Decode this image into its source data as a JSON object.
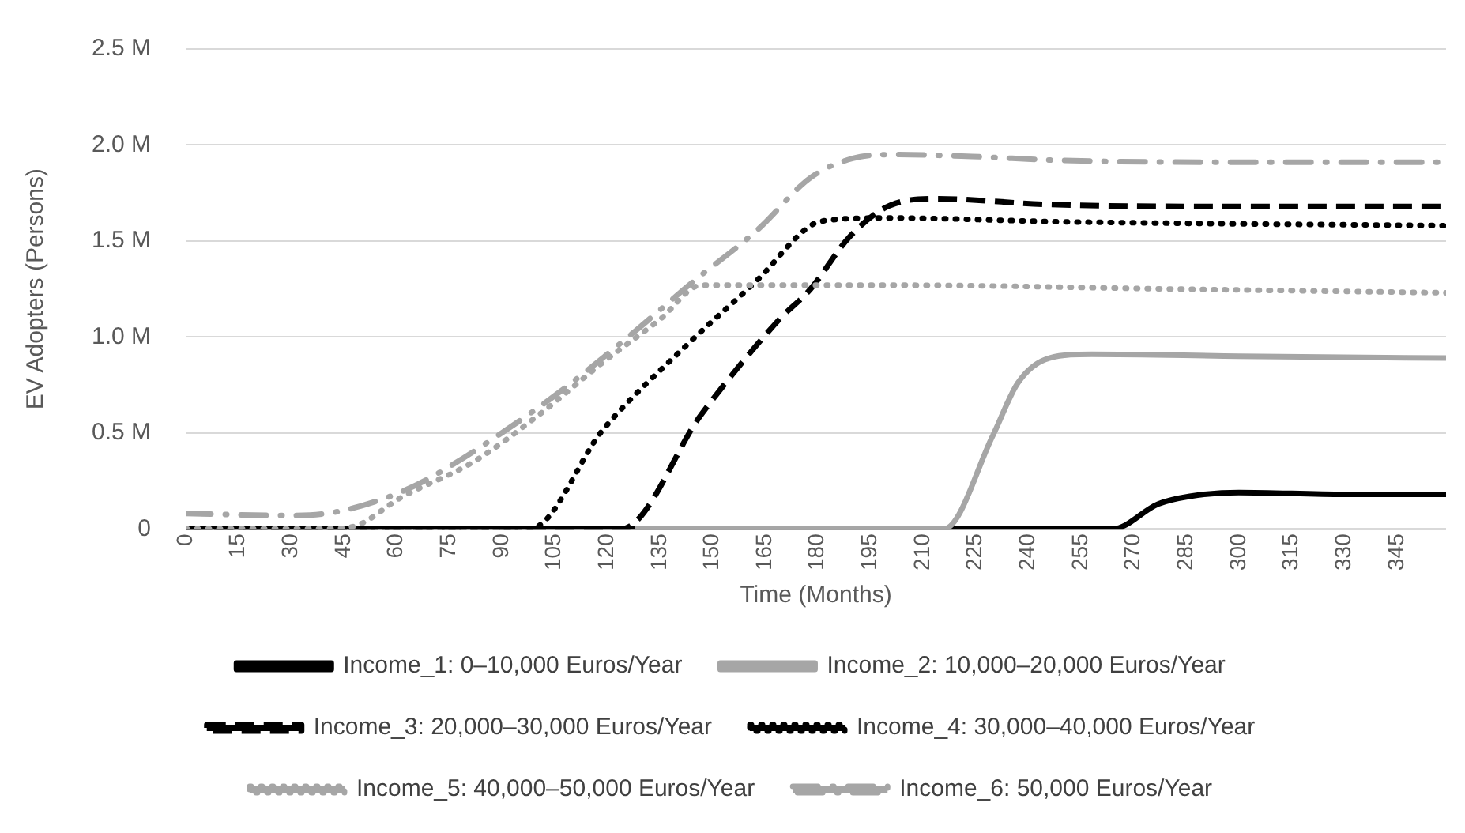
{
  "chart_data": {
    "type": "line",
    "xlabel": "Time (Months)",
    "ylabel": "EV Adopters (Persons)",
    "xlim": [
      0,
      359
    ],
    "xticks": [
      0,
      15,
      30,
      45,
      60,
      75,
      90,
      105,
      120,
      135,
      150,
      165,
      180,
      195,
      210,
      225,
      240,
      255,
      270,
      285,
      300,
      315,
      330,
      345
    ],
    "ylim": [
      0,
      2.5
    ],
    "yticks": [
      0,
      {
        "value": 0.5,
        "label": "0.5 M"
      },
      {
        "value": 1,
        "label": "1.0 M"
      },
      {
        "value": 1.5,
        "label": "1.5 M"
      },
      {
        "value": 2,
        "label": "2.0 M"
      },
      {
        "value": 2.5,
        "label": "2.5 M"
      }
    ],
    "grid": "y",
    "legend": "bottom",
    "marker": "none",
    "series": [
      {
        "name": "Income_1: 0–10,000 Euros/Year",
        "color": "#000000",
        "line_style": "solid",
        "x": [
          0,
          264,
          277,
          286,
          300,
          330,
          359
        ],
        "values": [
          0,
          0,
          0.13,
          0.17,
          0.19,
          0.18,
          0.18
        ]
      },
      {
        "name": "Income_2: 10,000–20,000 Euros/Year",
        "color": "#a6a6a6",
        "line_style": "solid",
        "x": [
          128,
          216,
          230,
          237,
          246,
          258,
          300,
          359
        ],
        "values": [
          0,
          0,
          0.49,
          0.76,
          0.89,
          0.91,
          0.9,
          0.89
        ]
      },
      {
        "name": "Income_3: 20,000–30,000 Euros/Year",
        "color": "#000000",
        "line_style": "dashed",
        "x": [
          0,
          124,
          147,
          169,
          178,
          189,
          200,
          214,
          246,
          300,
          359
        ],
        "values": [
          0,
          0,
          0.6,
          1.09,
          1.25,
          1.52,
          1.68,
          1.72,
          1.69,
          1.68,
          1.68
        ]
      },
      {
        "name": "Income_4: 30,000–40,000 Euros/Year",
        "color": "#000000",
        "line_style": "dotted",
        "x": [
          0,
          98,
          119,
          144,
          163,
          178,
          184,
          200,
          250,
          359
        ],
        "values": [
          0,
          0,
          0.52,
          0.98,
          1.3,
          1.58,
          1.61,
          1.62,
          1.6,
          1.58
        ]
      },
      {
        "name": "Income_5: 40,000–50,000 Euros/Year",
        "color": "#a6a6a6",
        "line_style": "dotted",
        "x": [
          0,
          40,
          49,
          61,
          82,
          101,
          119,
          135,
          147,
          200,
          280,
          359
        ],
        "values": [
          0,
          0,
          0.02,
          0.16,
          0.35,
          0.6,
          0.87,
          1.09,
          1.27,
          1.27,
          1.25,
          1.23
        ]
      },
      {
        "name": "Income_6: 50,000 Euros/Year",
        "color": "#a6a6a6",
        "line_style": "dashdot",
        "x": [
          0,
          30,
          40,
          50,
          61,
          70,
          90,
          107,
          128,
          144,
          163,
          178,
          190,
          202,
          224,
          249,
          300,
          359
        ],
        "values": [
          0.08,
          0.07,
          0.08,
          0.12,
          0.19,
          0.27,
          0.5,
          0.72,
          1.03,
          1.28,
          1.56,
          1.83,
          1.93,
          1.95,
          1.94,
          1.92,
          1.91,
          1.91
        ]
      }
    ]
  }
}
